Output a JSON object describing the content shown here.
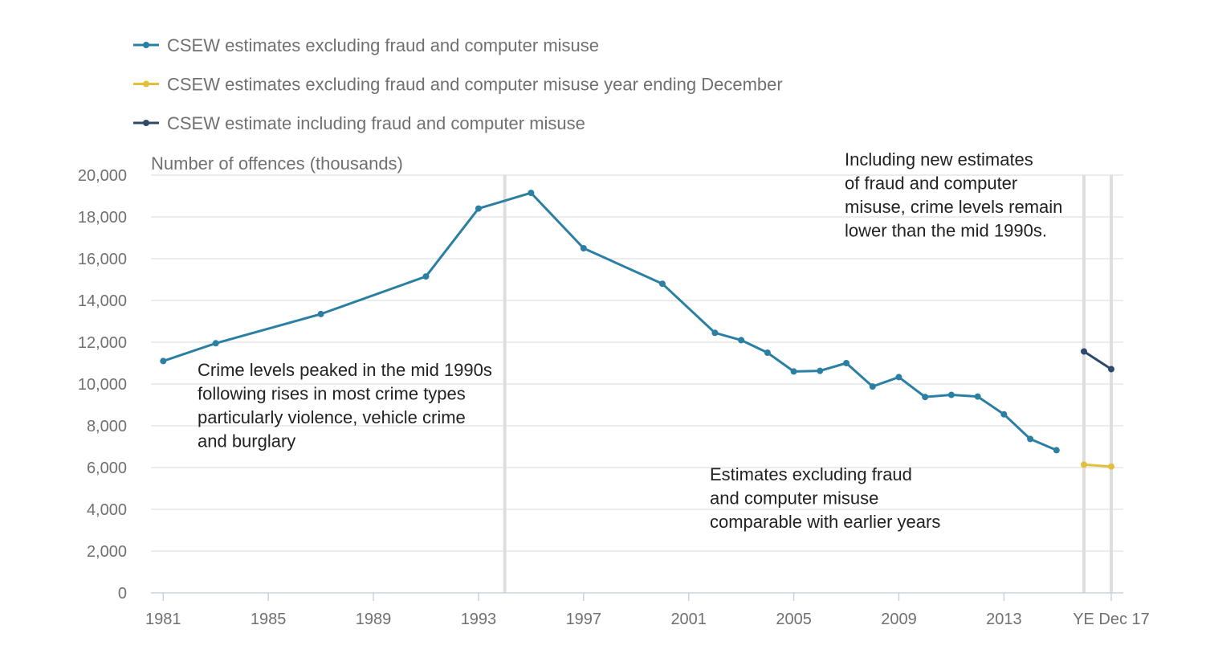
{
  "chart_data": {
    "type": "line",
    "ylabel": "Number of offences (thousands)",
    "ylim": [
      0,
      20000
    ],
    "yticks": [
      0,
      2000,
      4000,
      6000,
      8000,
      10000,
      12000,
      14000,
      16000,
      18000,
      20000
    ],
    "ytick_labels": [
      "0",
      "2,000",
      "4,000",
      "6,000",
      "8,000",
      "10,000",
      "12,000",
      "14,000",
      "16,000",
      "18,000",
      "20,000"
    ],
    "xticks": [
      "1981",
      "1985",
      "1989",
      "1993",
      "1997",
      "2001",
      "2005",
      "2009",
      "2013",
      "YE Dec 17"
    ],
    "grid": true,
    "legend_position": "top-left",
    "series": [
      {
        "name": "CSEW estimates excluding fraud and computer misuse",
        "color": "#2a7fa3",
        "points": [
          {
            "x": "1981",
            "y": 11100
          },
          {
            "x": "1983",
            "y": 11950
          },
          {
            "x": "1987",
            "y": 13350
          },
          {
            "x": "1991",
            "y": 15150
          },
          {
            "x": "1993",
            "y": 18400
          },
          {
            "x": "1995",
            "y": 19150
          },
          {
            "x": "1997",
            "y": 16500
          },
          {
            "x": "2000",
            "y": 14800
          },
          {
            "x": "2002",
            "y": 12450
          },
          {
            "x": "2003",
            "y": 12100
          },
          {
            "x": "2004",
            "y": 11500
          },
          {
            "x": "2005",
            "y": 10600
          },
          {
            "x": "2006",
            "y": 10630
          },
          {
            "x": "2007",
            "y": 11000
          },
          {
            "x": "2008",
            "y": 9880
          },
          {
            "x": "2009",
            "y": 10330
          },
          {
            "x": "2010",
            "y": 9380
          },
          {
            "x": "2011",
            "y": 9480
          },
          {
            "x": "2012",
            "y": 9400
          },
          {
            "x": "2013",
            "y": 8550
          },
          {
            "x": "2014",
            "y": 7370
          },
          {
            "x": "2015",
            "y": 6830
          }
        ]
      },
      {
        "name": "CSEW estimates excluding fraud and computer misuse year ending December",
        "color": "#e2bf3c",
        "points": [
          {
            "x": "YE Dec 16",
            "y": 6140
          },
          {
            "x": "YE Dec 17",
            "y": 6050
          }
        ]
      },
      {
        "name": "CSEW estimate including fraud and computer misuse",
        "color": "#2e4a6b",
        "points": [
          {
            "x": "YE Dec 16",
            "y": 11560
          },
          {
            "x": "YE Dec 17",
            "y": 10710
          }
        ]
      }
    ],
    "annotations": [
      {
        "lines": [
          "Crime levels peaked in the mid 1990s",
          "following rises in most crime types",
          "particularly violence, vehicle crime",
          "and burglary"
        ]
      },
      {
        "lines": [
          "Estimates excluding fraud",
          "and computer misuse",
          "comparable with earlier years"
        ]
      },
      {
        "lines": [
          "Including new estimates",
          "of fraud and computer",
          "misuse, crime levels remain",
          "lower than the mid 1990s."
        ]
      }
    ]
  }
}
